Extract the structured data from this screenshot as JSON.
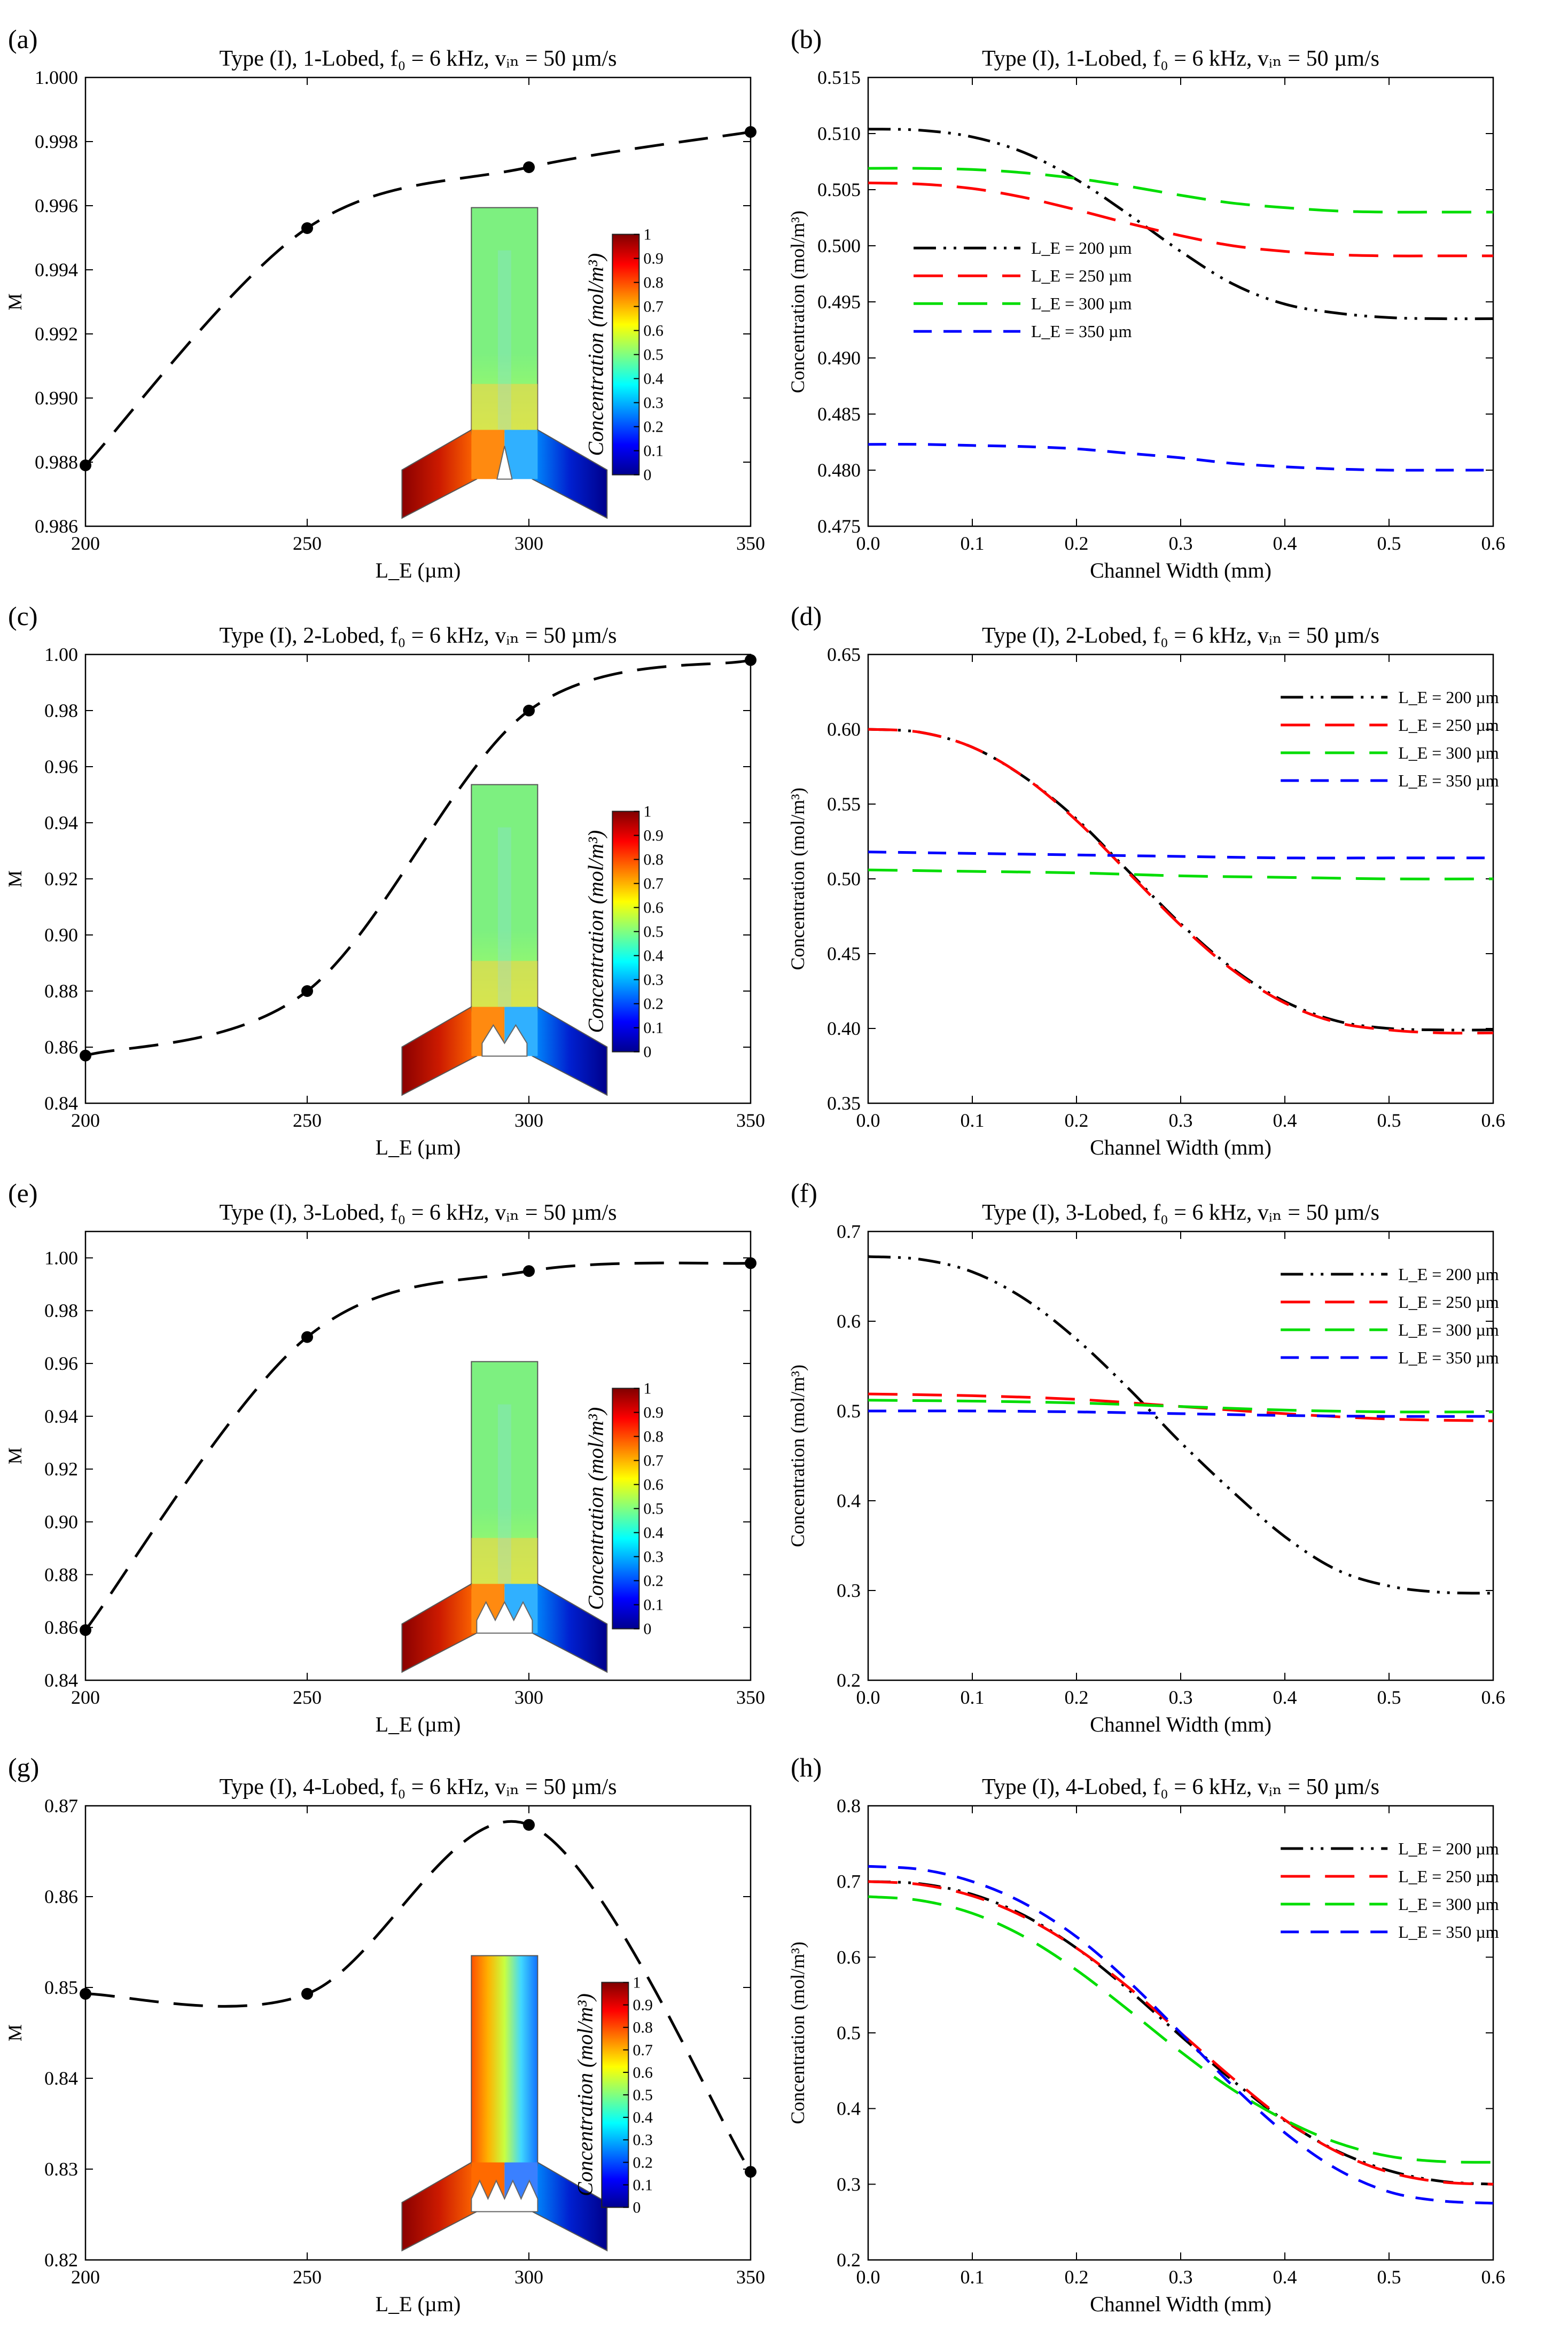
{
  "figure": {
    "colorbar": {
      "title": "Concentration (mol/m³)",
      "ticks": [
        "0",
        "0.1",
        "0.2",
        "0.3",
        "0.4",
        "0.5",
        "0.6",
        "0.7",
        "0.8",
        "0.9",
        "1"
      ]
    }
  },
  "chart_data": [
    {
      "id": "a",
      "panel_label": "(a)",
      "type": "line",
      "title": "Type (I), 1-Lobed, f₀ = 6 kHz, vᵢₙ = 50 µm/s",
      "xlabel": "L_E (µm)",
      "ylabel": "M",
      "xlim": [
        200,
        350
      ],
      "ylim": [
        0.986,
        1.0
      ],
      "xticks": [
        200,
        250,
        300,
        350
      ],
      "yticks": [
        "0.986",
        "0.988",
        "0.990",
        "0.992",
        "0.994",
        "0.996",
        "0.998",
        "1.000"
      ],
      "grid": false,
      "series": [
        {
          "color": "#000000",
          "dash": "long",
          "markers": true,
          "x": [
            200,
            250,
            300,
            350
          ],
          "y": [
            0.9879,
            0.9953,
            0.9972,
            0.9983
          ]
        }
      ],
      "inset": {
        "lobes": 1,
        "variant": "sym"
      }
    },
    {
      "id": "b",
      "panel_label": "(b)",
      "type": "line",
      "title": "Type (I), 1-Lobed, f₀ = 6 kHz, vᵢₙ = 50 µm/s",
      "xlabel": "Channel Width (mm)",
      "ylabel": "Concentration (mol/m³)",
      "xlim": [
        0,
        0.6
      ],
      "ylim": [
        0.475,
        0.515
      ],
      "xticks": [
        "0.0",
        "0.1",
        "0.2",
        "0.3",
        "0.4",
        "0.5",
        "0.6"
      ],
      "yticks": [
        "0.475",
        "0.480",
        "0.485",
        "0.490",
        "0.495",
        "0.500",
        "0.505",
        "0.510",
        "0.515"
      ],
      "grid": false,
      "legend_position": "middle-left",
      "series": [
        {
          "name": "L_E = 200 µm",
          "color": "#000000",
          "dash": "dashdotdot",
          "x": [
            0,
            0.05,
            0.1,
            0.15,
            0.2,
            0.25,
            0.3,
            0.35,
            0.4,
            0.45,
            0.5,
            0.55,
            0.6
          ],
          "y": [
            0.5104,
            0.5103,
            0.5097,
            0.5083,
            0.5059,
            0.5028,
            0.4995,
            0.4966,
            0.4948,
            0.494,
            0.4936,
            0.4935,
            0.4935
          ]
        },
        {
          "name": "L_E = 250 µm",
          "color": "#ff0000",
          "dash": "long",
          "x": [
            0,
            0.05,
            0.1,
            0.15,
            0.2,
            0.25,
            0.3,
            0.35,
            0.4,
            0.45,
            0.5,
            0.55,
            0.6
          ],
          "y": [
            0.5056,
            0.5055,
            0.5051,
            0.5043,
            0.5032,
            0.502,
            0.5009,
            0.5,
            0.4995,
            0.4992,
            0.4991,
            0.4991,
            0.4991
          ]
        },
        {
          "name": "L_E = 300 µm",
          "color": "#00dd00",
          "dash": "long",
          "x": [
            0,
            0.05,
            0.1,
            0.15,
            0.2,
            0.25,
            0.3,
            0.35,
            0.4,
            0.45,
            0.5,
            0.55,
            0.6
          ],
          "y": [
            0.5069,
            0.5069,
            0.5068,
            0.5065,
            0.506,
            0.5053,
            0.5045,
            0.5038,
            0.5034,
            0.5031,
            0.503,
            0.503,
            0.503
          ]
        },
        {
          "name": "L_E = 350 µm",
          "color": "#0000ff",
          "dash": "medium",
          "x": [
            0,
            0.05,
            0.1,
            0.15,
            0.2,
            0.25,
            0.3,
            0.35,
            0.4,
            0.45,
            0.5,
            0.55,
            0.6
          ],
          "y": [
            0.4823,
            0.4823,
            0.4822,
            0.4821,
            0.4819,
            0.4815,
            0.4811,
            0.4806,
            0.4803,
            0.4801,
            0.48,
            0.48,
            0.48
          ]
        }
      ]
    },
    {
      "id": "c",
      "panel_label": "(c)",
      "type": "line",
      "title": "Type (I), 2-Lobed, f₀ = 6 kHz, vᵢₙ = 50 µm/s",
      "xlabel": "L_E (µm)",
      "ylabel": "M",
      "xlim": [
        200,
        350
      ],
      "ylim": [
        0.84,
        1.0
      ],
      "xticks": [
        200,
        250,
        300,
        350
      ],
      "yticks": [
        "0.84",
        "0.86",
        "0.88",
        "0.90",
        "0.92",
        "0.94",
        "0.96",
        "0.98",
        "1.00"
      ],
      "grid": false,
      "series": [
        {
          "color": "#000000",
          "dash": "long",
          "markers": true,
          "x": [
            200,
            250,
            300,
            350
          ],
          "y": [
            0.857,
            0.88,
            0.98,
            0.998
          ]
        }
      ],
      "inset": {
        "lobes": 2,
        "variant": "sym"
      }
    },
    {
      "id": "d",
      "panel_label": "(d)",
      "type": "line",
      "title": "Type (I), 2-Lobed, f₀ = 6 kHz, vᵢₙ = 50 µm/s",
      "xlabel": "Channel Width (mm)",
      "ylabel": "Concentration (mol/m³)",
      "xlim": [
        0,
        0.6
      ],
      "ylim": [
        0.35,
        0.65
      ],
      "xticks": [
        "0.0",
        "0.1",
        "0.2",
        "0.3",
        "0.4",
        "0.5",
        "0.6"
      ],
      "yticks": [
        "0.35",
        "0.40",
        "0.45",
        "0.50",
        "0.55",
        "0.60",
        "0.65"
      ],
      "grid": false,
      "legend_position": "top-right",
      "series": [
        {
          "name": "L_E = 200 µm",
          "color": "#000000",
          "dash": "dashdotdot",
          "x": [
            0,
            0.05,
            0.1,
            0.15,
            0.2,
            0.25,
            0.3,
            0.35,
            0.4,
            0.45,
            0.5,
            0.55,
            0.6
          ],
          "y": [
            0.6,
            0.598,
            0.588,
            0.568,
            0.54,
            0.505,
            0.47,
            0.44,
            0.418,
            0.405,
            0.4,
            0.399,
            0.399
          ]
        },
        {
          "name": "L_E = 250 µm",
          "color": "#ff0000",
          "dash": "long",
          "x": [
            0,
            0.05,
            0.1,
            0.15,
            0.2,
            0.25,
            0.3,
            0.35,
            0.4,
            0.45,
            0.5,
            0.55,
            0.6
          ],
          "y": [
            0.6,
            0.598,
            0.588,
            0.568,
            0.539,
            0.504,
            0.469,
            0.439,
            0.417,
            0.404,
            0.399,
            0.397,
            0.397
          ]
        },
        {
          "name": "L_E = 300 µm",
          "color": "#00dd00",
          "dash": "long",
          "x": [
            0,
            0.1,
            0.2,
            0.3,
            0.4,
            0.5,
            0.6
          ],
          "y": [
            0.506,
            0.505,
            0.504,
            0.502,
            0.501,
            0.5,
            0.5
          ]
        },
        {
          "name": "L_E = 350 µm",
          "color": "#0000ff",
          "dash": "medium",
          "x": [
            0,
            0.1,
            0.2,
            0.3,
            0.4,
            0.5,
            0.6
          ],
          "y": [
            0.518,
            0.517,
            0.516,
            0.515,
            0.514,
            0.514,
            0.514
          ]
        }
      ]
    },
    {
      "id": "e",
      "panel_label": "(e)",
      "type": "line",
      "title": "Type (I), 3-Lobed, f₀ = 6 kHz, vᵢₙ = 50 µm/s",
      "xlabel": "L_E (µm)",
      "ylabel": "M",
      "xlim": [
        200,
        350
      ],
      "ylim": [
        0.84,
        1.01
      ],
      "xticks": [
        200,
        250,
        300,
        350
      ],
      "yticks": [
        "0.84",
        "0.86",
        "0.88",
        "0.90",
        "0.92",
        "0.94",
        "0.96",
        "0.98",
        "1.00"
      ],
      "grid": false,
      "series": [
        {
          "color": "#000000",
          "dash": "long",
          "markers": true,
          "x": [
            200,
            250,
            300,
            350
          ],
          "y": [
            0.859,
            0.97,
            0.995,
            0.998
          ]
        }
      ],
      "inset": {
        "lobes": 3,
        "variant": "sym"
      }
    },
    {
      "id": "f",
      "panel_label": "(f)",
      "type": "line",
      "title": "Type (I), 3-Lobed, f₀ = 6 kHz, vᵢₙ = 50 µm/s",
      "xlabel": "Channel Width (mm)",
      "ylabel": "Concentration (mol/m³)",
      "xlim": [
        0,
        0.6
      ],
      "ylim": [
        0.2,
        0.7
      ],
      "xticks": [
        "0.0",
        "0.1",
        "0.2",
        "0.3",
        "0.4",
        "0.5",
        "0.6"
      ],
      "yticks": [
        "0.2",
        "0.3",
        "0.4",
        "0.5",
        "0.6",
        "0.7"
      ],
      "grid": false,
      "legend_position": "top-right",
      "series": [
        {
          "name": "L_E = 200 µm",
          "color": "#000000",
          "dash": "dashdotdot",
          "x": [
            0,
            0.05,
            0.1,
            0.15,
            0.2,
            0.25,
            0.3,
            0.35,
            0.4,
            0.45,
            0.5,
            0.55,
            0.6
          ],
          "y": [
            0.672,
            0.669,
            0.655,
            0.625,
            0.58,
            0.525,
            0.465,
            0.41,
            0.36,
            0.323,
            0.305,
            0.298,
            0.297
          ]
        },
        {
          "name": "L_E = 250 µm",
          "color": "#ff0000",
          "dash": "long",
          "x": [
            0,
            0.1,
            0.2,
            0.3,
            0.4,
            0.5,
            0.6
          ],
          "y": [
            0.519,
            0.517,
            0.513,
            0.505,
            0.497,
            0.491,
            0.489
          ]
        },
        {
          "name": "L_E = 300 µm",
          "color": "#00dd00",
          "dash": "long",
          "x": [
            0,
            0.1,
            0.2,
            0.3,
            0.4,
            0.5,
            0.6
          ],
          "y": [
            0.512,
            0.511,
            0.509,
            0.505,
            0.501,
            0.499,
            0.499
          ]
        },
        {
          "name": "L_E = 350 µm",
          "color": "#0000ff",
          "dash": "medium",
          "x": [
            0,
            0.1,
            0.2,
            0.3,
            0.4,
            0.5,
            0.6
          ],
          "y": [
            0.5,
            0.5,
            0.499,
            0.497,
            0.495,
            0.494,
            0.494
          ]
        }
      ]
    },
    {
      "id": "g",
      "panel_label": "(g)",
      "type": "line",
      "title": "Type (I), 4-Lobed, f₀ = 6 kHz, vᵢₙ = 50 µm/s",
      "xlabel": "L_E (µm)",
      "ylabel": "M",
      "xlim": [
        200,
        350
      ],
      "ylim": [
        0.82,
        0.87
      ],
      "xticks": [
        200,
        250,
        300,
        350
      ],
      "yticks": [
        "0.82",
        "0.83",
        "0.84",
        "0.85",
        "0.86",
        "0.87"
      ],
      "grid": false,
      "series": [
        {
          "color": "#000000",
          "dash": "long",
          "markers": true,
          "x": [
            200,
            250,
            300,
            350
          ],
          "y": [
            0.8493,
            0.8493,
            0.8679,
            0.8297
          ]
        }
      ],
      "inset": {
        "lobes": 4,
        "variant": "asym"
      }
    },
    {
      "id": "h",
      "panel_label": "(h)",
      "type": "line",
      "title": "Type (I), 4-Lobed, f₀ = 6 kHz, vᵢₙ = 50 µm/s",
      "xlabel": "Channel Width (mm)",
      "ylabel": "Concentration (mol/m³)",
      "xlim": [
        0,
        0.6
      ],
      "ylim": [
        0.2,
        0.8
      ],
      "xticks": [
        "0.0",
        "0.1",
        "0.2",
        "0.3",
        "0.4",
        "0.5",
        "0.6"
      ],
      "yticks": [
        "0.2",
        "0.3",
        "0.4",
        "0.5",
        "0.6",
        "0.7",
        "0.8"
      ],
      "grid": false,
      "legend_position": "top-right",
      "series": [
        {
          "name": "L_E = 200 µm",
          "color": "#000000",
          "dash": "dashdotdot",
          "x": [
            0,
            0.05,
            0.1,
            0.15,
            0.2,
            0.25,
            0.3,
            0.35,
            0.4,
            0.45,
            0.5,
            0.55,
            0.6
          ],
          "y": [
            0.7,
            0.697,
            0.683,
            0.655,
            0.612,
            0.557,
            0.496,
            0.437,
            0.384,
            0.344,
            0.318,
            0.304,
            0.3
          ]
        },
        {
          "name": "L_E = 250 µm",
          "color": "#ff0000",
          "dash": "long",
          "x": [
            0,
            0.05,
            0.1,
            0.15,
            0.2,
            0.25,
            0.3,
            0.35,
            0.4,
            0.45,
            0.5,
            0.55,
            0.6
          ],
          "y": [
            0.7,
            0.696,
            0.681,
            0.653,
            0.612,
            0.56,
            0.5,
            0.44,
            0.385,
            0.343,
            0.316,
            0.303,
            0.3
          ]
        },
        {
          "name": "L_E = 300 µm",
          "color": "#00dd00",
          "dash": "long",
          "x": [
            0,
            0.05,
            0.1,
            0.15,
            0.2,
            0.25,
            0.3,
            0.35,
            0.4,
            0.45,
            0.5,
            0.55,
            0.6
          ],
          "y": [
            0.68,
            0.675,
            0.658,
            0.627,
            0.583,
            0.53,
            0.475,
            0.425,
            0.385,
            0.355,
            0.337,
            0.33,
            0.329
          ]
        },
        {
          "name": "L_E = 350 µm",
          "color": "#0000ff",
          "dash": "medium",
          "x": [
            0,
            0.05,
            0.1,
            0.15,
            0.2,
            0.25,
            0.3,
            0.35,
            0.4,
            0.45,
            0.5,
            0.55,
            0.6
          ],
          "y": [
            0.72,
            0.716,
            0.7,
            0.671,
            0.627,
            0.568,
            0.5,
            0.43,
            0.368,
            0.32,
            0.29,
            0.278,
            0.275
          ]
        }
      ]
    }
  ]
}
